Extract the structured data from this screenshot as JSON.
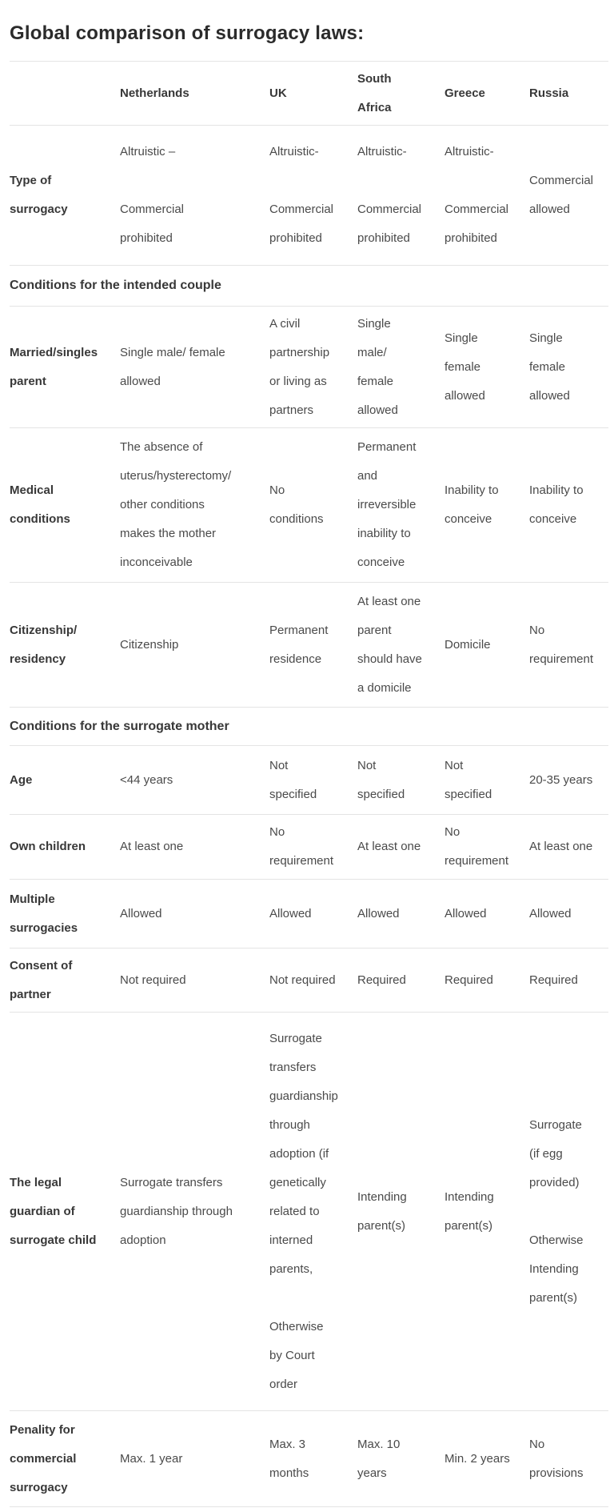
{
  "title": "Global comparison of surrogacy laws:",
  "table": {
    "column_ids": [
      "label",
      "netherlands",
      "uk",
      "south-africa",
      "greece",
      "russia"
    ],
    "columns": [
      "",
      "Netherlands",
      "UK",
      "South\nAfrica",
      "Greece",
      "Russia"
    ],
    "rows": [
      {
        "type": "data",
        "id": "type-of-surrogacy",
        "label": "Type of\nsurrogacy",
        "cells": [
          "Altruistic –\n\nCommercial\nprohibited",
          "Altruistic-\n\nCommercial\nprohibited",
          "Altruistic-\n\nCommercial\nprohibited",
          "Altruistic-\n\nCommercial\nprohibited",
          "Commercial\nallowed"
        ]
      },
      {
        "type": "section",
        "id": "conditions-intended-couple",
        "label": "Conditions for the intended couple"
      },
      {
        "type": "data",
        "id": "married-singles-parent",
        "label": "Married/singles\nparent",
        "cells": [
          "Single male/ female\nallowed",
          "A civil\npartnership\nor living as\npartners",
          "Single\nmale/\nfemale\nallowed",
          "Single\nfemale\nallowed",
          "Single\nfemale\nallowed"
        ]
      },
      {
        "type": "data",
        "id": "medical-conditions",
        "label": "Medical\nconditions",
        "cells": [
          "The absence of\nuterus/hysterectomy/\nother conditions\nmakes the mother\ninconceivable",
          "No\nconditions",
          "Permanent\nand\nirreversible\ninability to\nconceive",
          "Inability to\nconceive",
          "Inability to\nconceive"
        ]
      },
      {
        "type": "data",
        "id": "citizenship-residency",
        "label": "Citizenship/\nresidency",
        "cells": [
          "Citizenship",
          "Permanent\nresidence",
          "At least one\nparent\nshould have\na domicile",
          "Domicile",
          "No\nrequirement"
        ]
      },
      {
        "type": "section",
        "id": "conditions-surrogate-mother",
        "label": "Conditions for the surrogate mother"
      },
      {
        "type": "data",
        "id": "age",
        "label": "Age",
        "cells": [
          "<44 years",
          "Not\nspecified",
          "Not\nspecified",
          "Not\nspecified",
          "20-35 years"
        ]
      },
      {
        "type": "data",
        "id": "own-children",
        "label": "Own children",
        "cells": [
          "At least one",
          "No\nrequirement",
          "At least one",
          "No\nrequirement",
          "At least one"
        ]
      },
      {
        "type": "data",
        "id": "multiple-surrogacies",
        "label": "Multiple\nsurrogacies",
        "cells": [
          "Allowed",
          "Allowed",
          "Allowed",
          "Allowed",
          "Allowed"
        ]
      },
      {
        "type": "data",
        "id": "consent-of-partner",
        "label": "Consent of\npartner",
        "cells": [
          "Not required",
          "Not required",
          "Required",
          "Required",
          "Required"
        ]
      },
      {
        "type": "data",
        "id": "legal-guardian",
        "label": "The legal\nguardian of\nsurrogate child",
        "cells": [
          "Surrogate transfers\nguardianship through\nadoption",
          "Surrogate\ntransfers\nguardianship\nthrough\nadoption (if\ngenetically\nrelated to\ninterned\nparents,\n\nOtherwise\nby Court\norder",
          "Intending\nparent(s)",
          "Intending\nparent(s)",
          "Surrogate\n(if egg\nprovided)\n\nOtherwise\nIntending\nparent(s)"
        ]
      },
      {
        "type": "data",
        "id": "penality-commercial",
        "label": "Penality for\ncommercial\nsurrogacy",
        "cells": [
          "Max. 1 year",
          "Max. 3\nmonths",
          "Max. 10\nyears",
          "Min. 2 years",
          "No\nprovisions"
        ]
      }
    ]
  }
}
